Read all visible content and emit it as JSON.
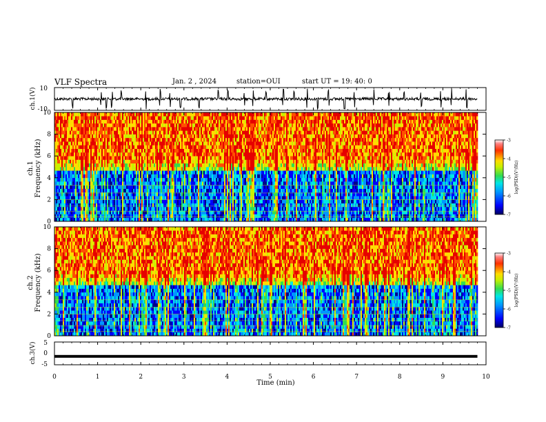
{
  "header": {
    "title": "VLF Spectra",
    "date": "Jan. 2 , 2024",
    "station": "station=OUI",
    "start_ut": "start UT =   19: 40: 0"
  },
  "chart_data": [
    {
      "type": "line",
      "panel": "ch1-waveform",
      "ylabel": "ch.1(V)",
      "ylim": [
        -10,
        10
      ],
      "yticks": [
        10,
        -10
      ],
      "x_range_min": [
        0,
        9.8
      ],
      "baseline_value": 0,
      "spike_times_min": [
        0.42,
        1.08,
        1.2,
        1.33,
        1.55,
        2.12,
        2.45,
        2.68,
        2.92,
        3.35,
        3.8,
        4.02,
        4.4,
        4.6,
        4.9,
        5.3,
        5.55,
        5.85,
        6.1,
        6.35,
        6.72,
        6.95,
        7.4,
        7.75,
        8.1,
        8.5,
        8.95,
        9.2,
        9.55
      ]
    },
    {
      "type": "heatmap",
      "panel": "ch1-spectrogram",
      "ylabel_line1": "ch.1",
      "ylabel_line2": "Frequency (kHz)",
      "ylim": [
        0,
        10
      ],
      "yticks": [
        0,
        2,
        4,
        6,
        8,
        10
      ],
      "x_range_min": [
        0,
        9.8
      ],
      "colorbar": {
        "label": "log(PSD)(V²/Hz)",
        "range": [
          -7,
          -3
        ],
        "ticks": [
          -3,
          -4,
          -5,
          -6,
          -7
        ]
      },
      "colormap": [
        "#00008b",
        "#0000ff",
        "#0096ff",
        "#00e6e6",
        "#32dc50",
        "#c8f000",
        "#ffdc00",
        "#ff5000",
        "#e60000"
      ]
    },
    {
      "type": "heatmap",
      "panel": "ch2-spectrogram",
      "ylabel_line1": "ch.2",
      "ylabel_line2": "Frequency (kHz)",
      "ylim": [
        0,
        10
      ],
      "yticks": [
        0,
        2,
        4,
        6,
        8,
        10
      ],
      "x_range_min": [
        0,
        9.8
      ],
      "colorbar": {
        "label": "log(PSD)(V²/Hz)",
        "range": [
          -7,
          -3
        ],
        "ticks": [
          -3,
          -4,
          -5,
          -6,
          -7
        ]
      },
      "colormap": [
        "#00008b",
        "#0000ff",
        "#0096ff",
        "#00e6e6",
        "#32dc50",
        "#c8f000",
        "#ffdc00",
        "#ff5000",
        "#e60000"
      ]
    },
    {
      "type": "line",
      "panel": "ch3-waveform",
      "ylabel": "ch.3(V)",
      "ylim": [
        -5,
        5
      ],
      "yticks": [
        5,
        0,
        -5
      ],
      "x_range_min": [
        0,
        9.8
      ],
      "baseline_value": -1.3
    }
  ],
  "x_axis": {
    "label": "Time (min)",
    "range": [
      0,
      10
    ],
    "ticks": [
      0,
      1,
      2,
      3,
      4,
      5,
      6,
      7,
      8,
      9,
      10
    ]
  }
}
